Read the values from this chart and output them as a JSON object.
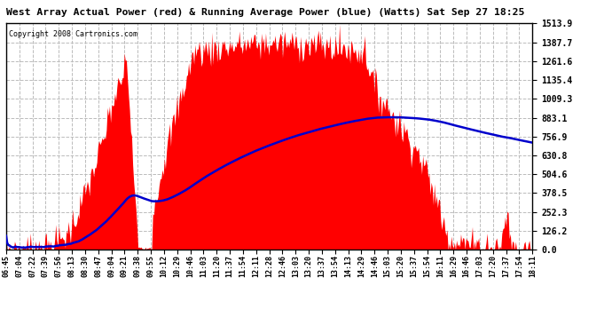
{
  "title": "West Array Actual Power (red) & Running Average Power (blue) (Watts) Sat Sep 27 18:25",
  "copyright": "Copyright 2008 Cartronics.com",
  "background_color": "#ffffff",
  "plot_bg_color": "#ffffff",
  "y_ticks": [
    0.0,
    126.2,
    252.3,
    378.5,
    504.6,
    630.8,
    756.9,
    883.1,
    1009.3,
    1135.4,
    1261.6,
    1387.7,
    1513.9
  ],
  "y_max": 1513.9,
  "y_min": 0.0,
  "red_color": "#ff0000",
  "blue_color": "#0000cc",
  "grid_color": "#bbbbbb",
  "x_labels": [
    "06:45",
    "07:04",
    "07:22",
    "07:39",
    "07:56",
    "08:13",
    "08:30",
    "08:47",
    "09:04",
    "09:21",
    "09:38",
    "09:55",
    "10:12",
    "10:29",
    "10:46",
    "11:03",
    "11:20",
    "11:37",
    "11:54",
    "12:11",
    "12:28",
    "12:46",
    "13:03",
    "13:20",
    "13:37",
    "13:54",
    "14:13",
    "14:29",
    "14:46",
    "15:03",
    "15:20",
    "15:37",
    "15:54",
    "16:11",
    "16:29",
    "16:46",
    "17:03",
    "17:20",
    "17:37",
    "17:54",
    "18:11"
  ],
  "n_points": 500,
  "figwidth": 6.9,
  "figheight": 3.75,
  "dpi": 100
}
